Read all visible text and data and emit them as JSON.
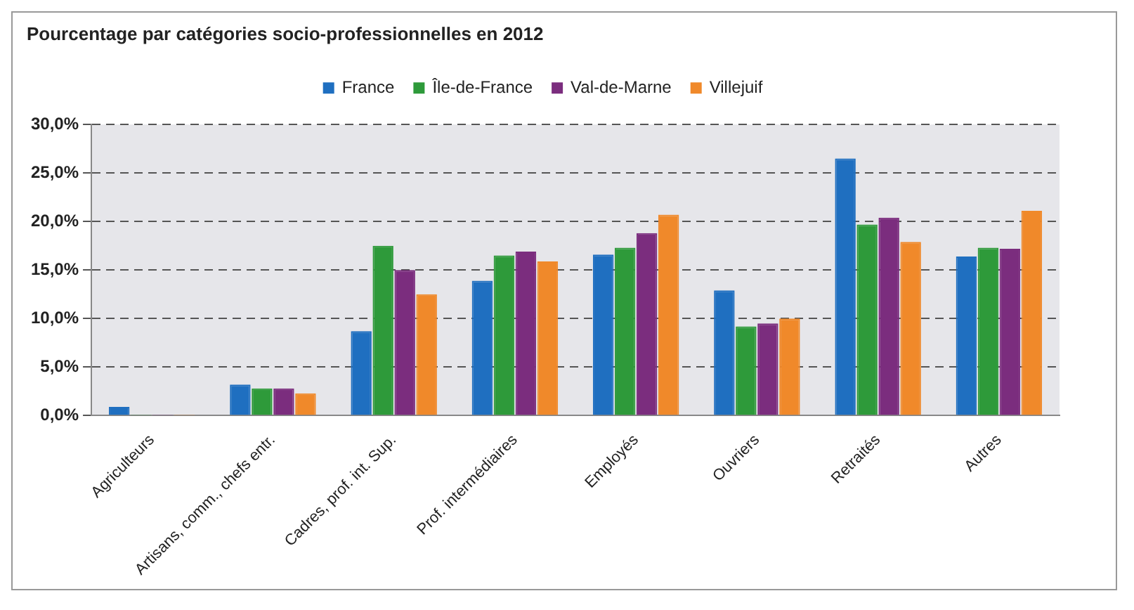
{
  "chart_data": {
    "type": "bar",
    "title": "Pourcentage par catégories socio-professionnelles en 2012",
    "categories": [
      "Agriculteurs",
      "Artisans, comm., chefs entr.",
      "Cadres, prof. int. Sup.",
      "Prof. intermédiaires",
      "Employés",
      "Ouvriers",
      "Retraités",
      "Autres"
    ],
    "series": [
      {
        "name": "France",
        "color": "#1f6fc0",
        "values": [
          0.9,
          3.2,
          8.7,
          13.9,
          16.6,
          12.9,
          26.5,
          16.4
        ]
      },
      {
        "name": "Île-de-France",
        "color": "#2e9a3a",
        "values": [
          0.1,
          2.8,
          17.5,
          16.5,
          17.3,
          9.2,
          19.7,
          17.3
        ]
      },
      {
        "name": "Val-de-Marne",
        "color": "#7b2d7e",
        "values": [
          0.1,
          2.8,
          15.0,
          16.9,
          18.8,
          9.5,
          20.4,
          17.2
        ]
      },
      {
        "name": "Villejuif",
        "color": "#f0892a",
        "values": [
          0.1,
          2.3,
          12.5,
          15.9,
          20.7,
          10.0,
          17.9,
          21.1
        ]
      }
    ],
    "ylim": [
      0,
      30
    ],
    "yticks": [
      {
        "value": 0,
        "label": "0,0%"
      },
      {
        "value": 5,
        "label": "5,0%"
      },
      {
        "value": 10,
        "label": "10,0%"
      },
      {
        "value": 15,
        "label": "15,0%"
      },
      {
        "value": 20,
        "label": "20,0%"
      },
      {
        "value": 25,
        "label": "25,0%"
      },
      {
        "value": 30,
        "label": "30,0%"
      }
    ],
    "grid": "y",
    "legend": "top"
  }
}
